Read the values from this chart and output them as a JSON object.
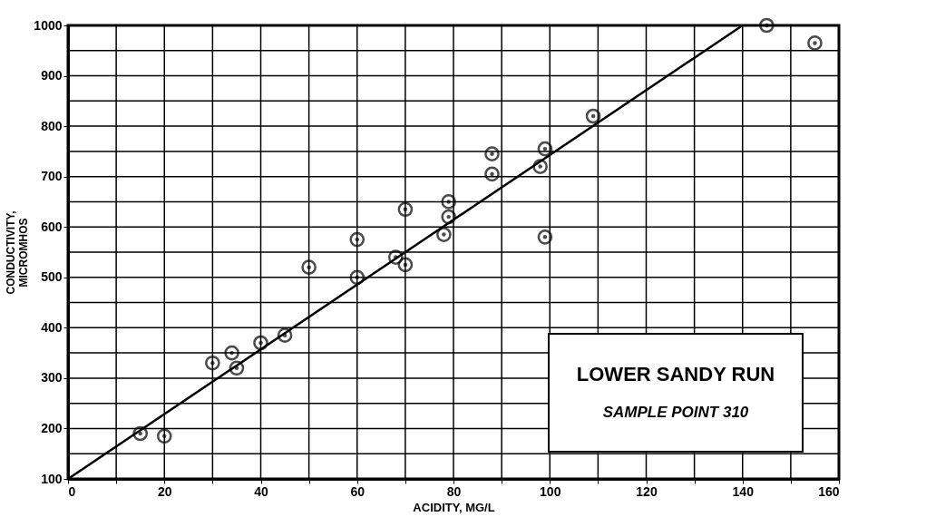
{
  "chart_data": {
    "type": "scatter",
    "xlabel": "ACIDITY, MG/L",
    "ylabel": "CONDUCTIVITY, MICROMHOS",
    "annotations": [
      "LOWER SANDY RUN",
      "SAMPLE POINT 310"
    ],
    "xlim": [
      0,
      160
    ],
    "ylim": [
      100,
      1000
    ],
    "xticks": [
      0,
      {
        "value": 10,
        "label": null
      },
      20,
      {
        "value": 30,
        "label": null
      },
      40,
      {
        "value": 50,
        "label": null
      },
      60,
      {
        "value": 70,
        "label": null
      },
      80,
      {
        "value": 90,
        "label": null
      },
      100,
      {
        "value": 110,
        "label": null
      },
      120,
      {
        "value": 130,
        "label": null
      },
      140,
      {
        "value": 150,
        "label": null
      },
      160
    ],
    "yticks": [
      100,
      {
        "value": 150,
        "label": null
      },
      200,
      {
        "value": 250,
        "label": null
      },
      300,
      {
        "value": 350,
        "label": null
      },
      400,
      {
        "value": 450,
        "label": null
      },
      500,
      {
        "value": 550,
        "label": null
      },
      600,
      {
        "value": 650,
        "label": null
      },
      700,
      {
        "value": 750,
        "label": null
      },
      800,
      {
        "value": 850,
        "label": null
      },
      900,
      {
        "value": 950,
        "label": null
      },
      1000
    ],
    "grid": true,
    "series": [
      {
        "marker": "circle",
        "color": "#000000",
        "x": [
          15,
          20,
          30,
          34,
          35,
          40,
          45,
          50,
          60,
          60,
          68,
          70,
          70,
          78,
          79,
          79,
          88,
          88,
          99,
          98,
          99,
          109,
          145,
          155
        ],
        "values": [
          190,
          185,
          330,
          350,
          320,
          370,
          385,
          520,
          500,
          575,
          540,
          525,
          635,
          585,
          650,
          620,
          745,
          705,
          755,
          720,
          580,
          820,
          1000,
          965
        ]
      },
      {
        "type": "line",
        "color": "#000000",
        "line_style": "solid",
        "x": [
          0,
          140
        ],
        "values": [
          100,
          1000
        ]
      }
    ]
  }
}
